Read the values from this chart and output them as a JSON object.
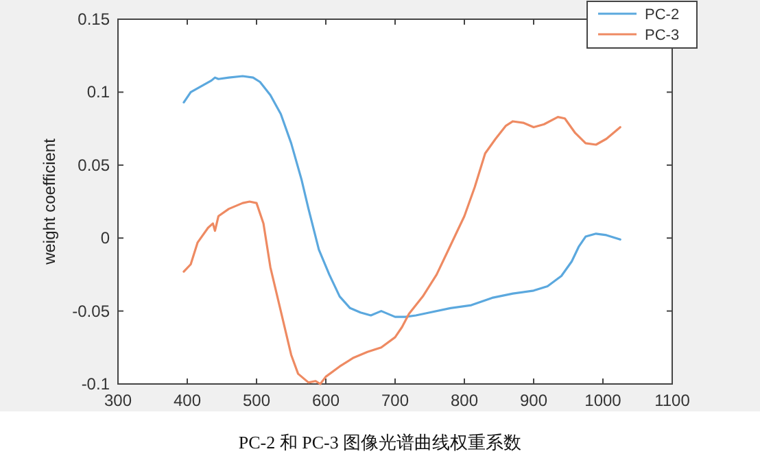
{
  "chart_data": {
    "type": "line",
    "ylabel": "weight coefficient",
    "annotations": [
      "PC-2 和 PC-3 图像光谱曲线权重系数"
    ],
    "xlim": [
      300,
      1100
    ],
    "xticks": [
      300,
      400,
      500,
      600,
      700,
      800,
      900,
      1000,
      1100
    ],
    "ylim": [
      -0.1,
      0.15
    ],
    "yticks": [
      -0.1,
      -0.05,
      0,
      0.05,
      0.1,
      0.15
    ],
    "legend": "top right",
    "series": [
      {
        "name": "PC-2",
        "color": "#5ba8de",
        "x": [
          395,
          405,
          420,
          435,
          440,
          445,
          460,
          480,
          495,
          505,
          520,
          535,
          550,
          565,
          575,
          590,
          605,
          620,
          635,
          650,
          665,
          680,
          690,
          700,
          715,
          730,
          750,
          780,
          810,
          840,
          870,
          900,
          920,
          940,
          955,
          965,
          975,
          990,
          1005,
          1025
        ],
        "values": [
          0.093,
          0.1,
          0.104,
          0.108,
          0.11,
          0.109,
          0.11,
          0.111,
          0.11,
          0.107,
          0.098,
          0.085,
          0.065,
          0.04,
          0.02,
          -0.008,
          -0.025,
          -0.04,
          -0.048,
          -0.051,
          -0.053,
          -0.05,
          -0.052,
          -0.054,
          -0.054,
          -0.053,
          -0.051,
          -0.048,
          -0.046,
          -0.041,
          -0.038,
          -0.036,
          -0.033,
          -0.026,
          -0.016,
          -0.006,
          0.001,
          0.003,
          0.002,
          -0.001
        ]
      },
      {
        "name": "PC-3",
        "color": "#ee8a62",
        "x": [
          395,
          405,
          415,
          430,
          437,
          440,
          445,
          460,
          480,
          490,
          500,
          510,
          520,
          535,
          550,
          560,
          575,
          585,
          592,
          600,
          620,
          640,
          660,
          680,
          700,
          710,
          720,
          740,
          760,
          775,
          790,
          800,
          815,
          830,
          845,
          860,
          870,
          885,
          900,
          915,
          935,
          945,
          960,
          975,
          990,
          1005,
          1025
        ],
        "values": [
          -0.023,
          -0.018,
          -0.003,
          0.007,
          0.01,
          0.005,
          0.015,
          0.02,
          0.024,
          0.025,
          0.024,
          0.01,
          -0.02,
          -0.05,
          -0.08,
          -0.093,
          -0.099,
          -0.098,
          -0.1,
          -0.095,
          -0.088,
          -0.082,
          -0.078,
          -0.075,
          -0.068,
          -0.061,
          -0.052,
          -0.04,
          -0.025,
          -0.01,
          0.005,
          0.015,
          0.035,
          0.058,
          0.068,
          0.077,
          0.08,
          0.079,
          0.076,
          0.078,
          0.083,
          0.082,
          0.072,
          0.065,
          0.064,
          0.068,
          0.076
        ]
      }
    ]
  }
}
